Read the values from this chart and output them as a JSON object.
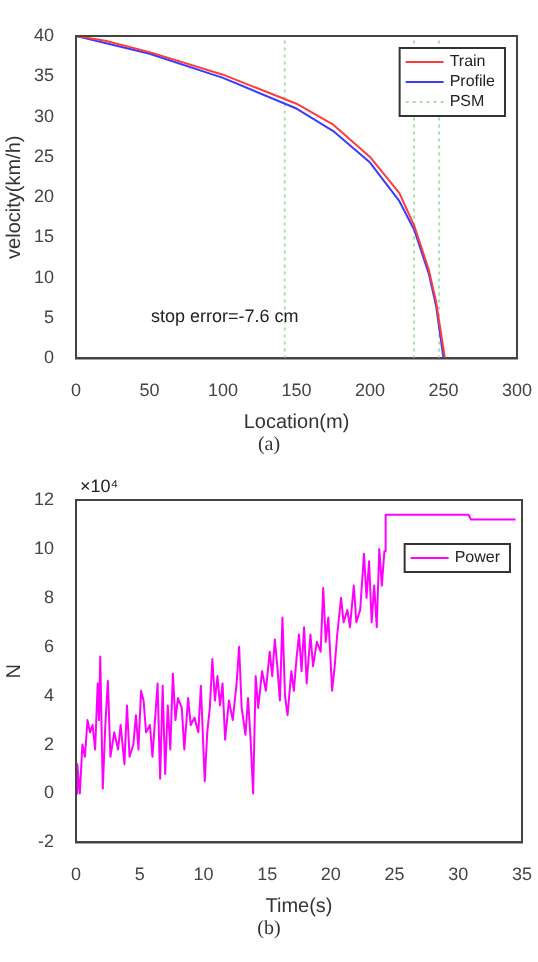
{
  "chart_data": [
    {
      "type": "line",
      "xlabel": "Location(m)",
      "ylabel": "velocity(km/h)",
      "xlim": [
        0,
        300
      ],
      "xticks": [
        0,
        50,
        100,
        150,
        200,
        250,
        300
      ],
      "ylim": [
        0,
        40
      ],
      "yticks": [
        0,
        5,
        10,
        15,
        20,
        25,
        30,
        35,
        40
      ],
      "grid": false,
      "legend": "top right",
      "marker": "none",
      "annotations": [
        "stop error=-7.6 cm",
        "(a)"
      ],
      "series": [
        {
          "name": "Train",
          "color": "#ff3b3b",
          "x": [
            0,
            20,
            50,
            100,
            150,
            175,
            200,
            220,
            230,
            240,
            245,
            251
          ],
          "values": [
            40,
            39.4,
            38,
            35.2,
            31.6,
            29,
            25,
            20.5,
            16.5,
            11,
            7,
            0
          ]
        },
        {
          "name": "Profile",
          "color": "#3b3bff",
          "x": [
            0,
            50,
            100,
            150,
            175,
            200,
            220,
            230,
            240,
            245,
            250
          ],
          "values": [
            40,
            37.8,
            34.8,
            31,
            28.2,
            24.3,
            19.5,
            16,
            10.5,
            6.5,
            0
          ]
        },
        {
          "name": "PSM",
          "color": "#a8e0a8",
          "line_style": "dotted",
          "x": [
            142,
            142
          ],
          "values": [
            0,
            40
          ]
        },
        {
          "color": "#a8e0a8",
          "line_style": "dotted",
          "x": [
            230,
            230
          ],
          "values": [
            0,
            40
          ]
        },
        {
          "color": "#a8e0a8",
          "line_style": "dotted",
          "x": [
            247,
            247
          ],
          "values": [
            0,
            40
          ]
        }
      ]
    },
    {
      "type": "line",
      "xlabel": "Time(s)",
      "ylabel": "N",
      "xlim": [
        0,
        35
      ],
      "xticks": [
        0,
        5,
        10,
        15,
        20,
        25,
        30,
        35
      ],
      "ylim": [
        -2,
        12
      ],
      "yticks": [
        -2,
        0,
        2,
        4,
        6,
        8,
        10,
        12
      ],
      "grid": false,
      "legend": "top right",
      "marker": "none",
      "annotations": [
        "×10⁴",
        "(b)"
      ],
      "series": [
        {
          "name": "Power",
          "color": "#ff00ff",
          "x": [
            0,
            0.1,
            0.3,
            0.5,
            0.7,
            0.9,
            1.1,
            1.3,
            1.5,
            1.7,
            1.8,
            1.9,
            2.1,
            2.3,
            2.5,
            2.7,
            3,
            3.3,
            3.5,
            3.8,
            4,
            4.2,
            4.5,
            4.7,
            4.9,
            5.1,
            5.3,
            5.5,
            5.8,
            6,
            6.2,
            6.4,
            6.6,
            6.8,
            7,
            7.2,
            7.4,
            7.6,
            7.8,
            8,
            8.3,
            8.5,
            8.8,
            9,
            9.3,
            9.6,
            9.8,
            10.1,
            10.3,
            10.5,
            10.7,
            10.9,
            11.1,
            11.3,
            11.5,
            11.7,
            12,
            12.3,
            12.6,
            12.8,
            13,
            13.3,
            13.5,
            13.7,
            13.9,
            14.1,
            14.3,
            14.6,
            14.9,
            15.2,
            15.4,
            15.6,
            15.8,
            16,
            16.2,
            16.4,
            16.6,
            16.9,
            17.1,
            17.3,
            17.5,
            17.7,
            17.9,
            18.1,
            18.4,
            18.6,
            18.9,
            19.2,
            19.4,
            19.6,
            19.8,
            20.1,
            20.3,
            20.5,
            20.8,
            21,
            21.3,
            21.5,
            21.8,
            22,
            22.3,
            22.6,
            22.8,
            23,
            23.2,
            23.4,
            23.6,
            23.8,
            24,
            24.2,
            24.3,
            30.8,
            31,
            34.5
          ],
          "values": [
            0,
            1.2,
            0,
            2,
            1.5,
            3,
            2.5,
            2.8,
            1.8,
            4.5,
            3,
            5.6,
            0.2,
            2.8,
            4.6,
            1.5,
            2.5,
            1.8,
            2.8,
            1.2,
            3.6,
            1.5,
            2,
            3.2,
            1.8,
            4.2,
            3.8,
            2.5,
            2.8,
            1.5,
            3,
            4.5,
            0.6,
            4.4,
            0.8,
            3.6,
            1.8,
            4.9,
            3,
            3.9,
            3.5,
            1.8,
            3.9,
            2.8,
            3.1,
            2.5,
            4.4,
            0.5,
            2.5,
            3.5,
            5.5,
            3.8,
            4.8,
            3.6,
            4.5,
            2.2,
            3.8,
            3,
            4.5,
            6,
            3.5,
            2.4,
            3.9,
            2.2,
            0,
            4.8,
            3.5,
            5,
            4.2,
            5.8,
            4.8,
            6.3,
            5.2,
            3.8,
            7.2,
            4,
            3.2,
            5,
            4.2,
            5.5,
            6.5,
            5,
            6.8,
            4.5,
            6.5,
            5.2,
            6.2,
            5.8,
            8.4,
            6.2,
            7.2,
            4.2,
            5.2,
            6.5,
            8,
            7,
            7.5,
            6.8,
            8.5,
            7,
            7.5,
            9.8,
            8,
            9.5,
            7,
            8.5,
            6.8,
            10,
            8.5,
            9.9,
            11.4,
            11.4,
            11.2,
            11.2
          ]
        }
      ]
    }
  ]
}
